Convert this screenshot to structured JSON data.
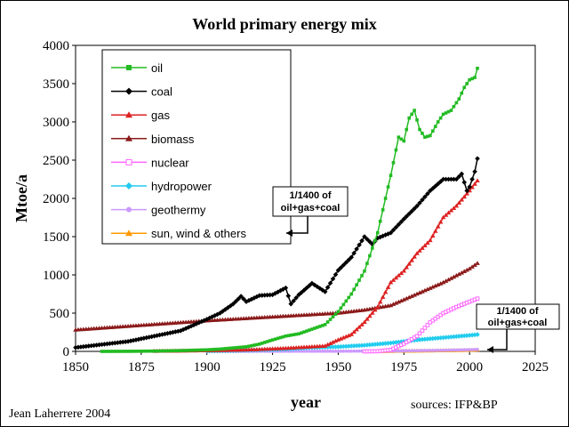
{
  "chart_data": {
    "type": "line",
    "title": "World primary energy mix",
    "xlabel": "year",
    "ylabel": "Mtoe/a",
    "xlim": [
      1850,
      2025
    ],
    "ylim": [
      0,
      4000
    ],
    "xticks": [
      1850,
      1875,
      1900,
      1925,
      1950,
      1975,
      2000,
      2025
    ],
    "yticks": [
      0,
      500,
      1000,
      1500,
      2000,
      2500,
      3000,
      3500,
      4000
    ],
    "legend_position": "top-left",
    "series": [
      {
        "name": "oil",
        "color": "#22bb22",
        "marker": "square",
        "points": [
          [
            1860,
            0
          ],
          [
            1870,
            1
          ],
          [
            1880,
            4
          ],
          [
            1890,
            10
          ],
          [
            1900,
            20
          ],
          [
            1905,
            30
          ],
          [
            1910,
            45
          ],
          [
            1915,
            60
          ],
          [
            1920,
            95
          ],
          [
            1925,
            150
          ],
          [
            1930,
            200
          ],
          [
            1935,
            230
          ],
          [
            1940,
            290
          ],
          [
            1945,
            350
          ],
          [
            1950,
            520
          ],
          [
            1955,
            750
          ],
          [
            1960,
            1050
          ],
          [
            1965,
            1550
          ],
          [
            1970,
            2300
          ],
          [
            1973,
            2800
          ],
          [
            1975,
            2750
          ],
          [
            1977,
            3050
          ],
          [
            1979,
            3150
          ],
          [
            1981,
            2900
          ],
          [
            1983,
            2800
          ],
          [
            1985,
            2820
          ],
          [
            1988,
            3000
          ],
          [
            1990,
            3100
          ],
          [
            1993,
            3150
          ],
          [
            1996,
            3300
          ],
          [
            1998,
            3450
          ],
          [
            2000,
            3550
          ],
          [
            2002,
            3580
          ],
          [
            2003,
            3700
          ]
        ]
      },
      {
        "name": "coal",
        "color": "#000000",
        "marker": "diamond",
        "points": [
          [
            1850,
            50
          ],
          [
            1860,
            90
          ],
          [
            1870,
            130
          ],
          [
            1880,
            200
          ],
          [
            1890,
            270
          ],
          [
            1900,
            420
          ],
          [
            1905,
            500
          ],
          [
            1910,
            620
          ],
          [
            1913,
            720
          ],
          [
            1915,
            650
          ],
          [
            1920,
            730
          ],
          [
            1925,
            740
          ],
          [
            1930,
            830
          ],
          [
            1932,
            620
          ],
          [
            1935,
            740
          ],
          [
            1940,
            890
          ],
          [
            1945,
            780
          ],
          [
            1950,
            1060
          ],
          [
            1955,
            1230
          ],
          [
            1960,
            1500
          ],
          [
            1963,
            1400
          ],
          [
            1965,
            1480
          ],
          [
            1970,
            1550
          ],
          [
            1975,
            1730
          ],
          [
            1980,
            1900
          ],
          [
            1985,
            2100
          ],
          [
            1990,
            2250
          ],
          [
            1995,
            2250
          ],
          [
            1997,
            2320
          ],
          [
            1999,
            2100
          ],
          [
            2000,
            2150
          ],
          [
            2002,
            2350
          ],
          [
            2003,
            2520
          ]
        ]
      },
      {
        "name": "gas",
        "color": "#dd2222",
        "marker": "triangle",
        "points": [
          [
            1880,
            2
          ],
          [
            1900,
            10
          ],
          [
            1910,
            15
          ],
          [
            1920,
            25
          ],
          [
            1930,
            40
          ],
          [
            1940,
            60
          ],
          [
            1945,
            70
          ],
          [
            1950,
            150
          ],
          [
            1955,
            220
          ],
          [
            1960,
            380
          ],
          [
            1965,
            580
          ],
          [
            1970,
            900
          ],
          [
            1975,
            1050
          ],
          [
            1980,
            1280
          ],
          [
            1985,
            1450
          ],
          [
            1990,
            1750
          ],
          [
            1995,
            1900
          ],
          [
            2000,
            2100
          ],
          [
            2003,
            2230
          ]
        ]
      },
      {
        "name": "biomass",
        "color": "#8b1a1a",
        "marker": "triangle",
        "points": [
          [
            1850,
            280
          ],
          [
            1875,
            340
          ],
          [
            1900,
            400
          ],
          [
            1925,
            450
          ],
          [
            1950,
            500
          ],
          [
            1960,
            540
          ],
          [
            1970,
            600
          ],
          [
            1980,
            750
          ],
          [
            1990,
            900
          ],
          [
            2000,
            1080
          ],
          [
            2003,
            1150
          ]
        ]
      },
      {
        "name": "nuclear",
        "color": "#ff66ff",
        "marker": "square-open",
        "points": [
          [
            1960,
            0
          ],
          [
            1965,
            2
          ],
          [
            1970,
            20
          ],
          [
            1975,
            100
          ],
          [
            1980,
            200
          ],
          [
            1985,
            380
          ],
          [
            1990,
            500
          ],
          [
            1995,
            580
          ],
          [
            2000,
            650
          ],
          [
            2003,
            690
          ]
        ]
      },
      {
        "name": "hydropower",
        "color": "#22ccee",
        "marker": "diamond",
        "points": [
          [
            1900,
            5
          ],
          [
            1910,
            10
          ],
          [
            1920,
            20
          ],
          [
            1930,
            30
          ],
          [
            1940,
            50
          ],
          [
            1950,
            60
          ],
          [
            1960,
            80
          ],
          [
            1970,
            110
          ],
          [
            1975,
            130
          ],
          [
            1980,
            150
          ],
          [
            1990,
            180
          ],
          [
            2000,
            210
          ],
          [
            2003,
            220
          ]
        ]
      },
      {
        "name": "geothermy",
        "color": "#cc99ff",
        "marker": "circle",
        "points": [
          [
            1900,
            0
          ],
          [
            1950,
            2
          ],
          [
            1970,
            5
          ],
          [
            1980,
            10
          ],
          [
            1990,
            15
          ],
          [
            2000,
            22
          ],
          [
            2003,
            25
          ]
        ]
      },
      {
        "name": "sun, wind & others",
        "color": "#ff9900",
        "marker": "triangle",
        "points": [
          [
            1965,
            0
          ],
          [
            1970,
            2
          ],
          [
            1980,
            6
          ],
          [
            1990,
            10
          ],
          [
            2000,
            15
          ],
          [
            2003,
            20
          ]
        ]
      }
    ],
    "annotations": [
      {
        "lines": [
          "1/1400 of",
          "oil+gas+coal"
        ],
        "target": "geothermy"
      },
      {
        "lines": [
          "1/1400 of",
          "oil+gas+coal"
        ],
        "target": "sun, wind & others"
      }
    ]
  },
  "credits": {
    "author": "Jean Laherrere 2004",
    "sources": "sources: IFP&BP"
  }
}
